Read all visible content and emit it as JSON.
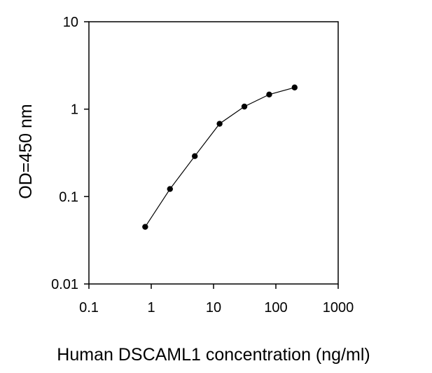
{
  "chart_data": {
    "type": "line",
    "title": "",
    "xlabel": "Human DSCAML1 concentration (ng/ml)",
    "ylabel": "OD=450 nm",
    "x_scale": "log",
    "y_scale": "log",
    "xlim": [
      0.1,
      1000
    ],
    "ylim": [
      0.01,
      10
    ],
    "x_ticks": [
      {
        "value": 0.1,
        "label": "0.1"
      },
      {
        "value": 1,
        "label": "1"
      },
      {
        "value": 10,
        "label": "10"
      },
      {
        "value": 100,
        "label": "100"
      },
      {
        "value": 1000,
        "label": "1000"
      }
    ],
    "y_ticks": [
      {
        "value": 0.01,
        "label": "0.01"
      },
      {
        "value": 0.1,
        "label": "0.1"
      },
      {
        "value": 1,
        "label": "1"
      },
      {
        "value": 10,
        "label": "10"
      }
    ],
    "grid": false,
    "legend": "none",
    "series": [
      {
        "x": [
          0.8,
          2,
          5,
          12.5,
          31.25,
          78.125,
          200
        ],
        "y": [
          0.045,
          0.122,
          0.29,
          0.68,
          1.07,
          1.47,
          1.77
        ]
      }
    ],
    "colors": {
      "line": "#000000",
      "marker": "#000000",
      "axis": "#000000"
    }
  }
}
